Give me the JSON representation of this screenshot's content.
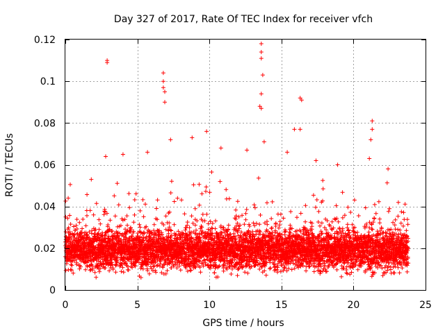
{
  "chart_data": {
    "type": "scatter",
    "title": "Day 327 of 2017, Rate Of TEC Index for receiver vfch",
    "xlabel": "GPS time / hours",
    "ylabel": "ROTI / TECUs",
    "xlim": [
      0,
      25
    ],
    "ylim": [
      0,
      0.12
    ],
    "x_ticks": [
      0,
      5,
      10,
      15,
      20,
      25
    ],
    "y_ticks": [
      0,
      0.02,
      0.04,
      0.06,
      0.08,
      0.1,
      0.12
    ],
    "x_tick_labels": [
      "0",
      "5",
      "10",
      "15",
      "20",
      "25"
    ],
    "y_tick_labels": [
      "0",
      "0.02",
      "0.04",
      "0.06",
      "0.08",
      "0.1",
      "0.12"
    ],
    "grid": true,
    "marker": "plus",
    "color": "#ff0000",
    "data_range_hours": [
      0,
      23.8
    ],
    "typical_band": [
      0.008,
      0.03
    ],
    "series": [
      {
        "name": "vfch ROTI",
        "notable_points": [
          {
            "x": 0.2,
            "y": 0.044
          },
          {
            "x": 1.8,
            "y": 0.053
          },
          {
            "x": 2.9,
            "y": 0.11
          },
          {
            "x": 2.9,
            "y": 0.109
          },
          {
            "x": 2.8,
            "y": 0.064
          },
          {
            "x": 4.0,
            "y": 0.065
          },
          {
            "x": 5.7,
            "y": 0.066
          },
          {
            "x": 6.8,
            "y": 0.104
          },
          {
            "x": 6.8,
            "y": 0.1
          },
          {
            "x": 6.8,
            "y": 0.097
          },
          {
            "x": 6.9,
            "y": 0.095
          },
          {
            "x": 6.9,
            "y": 0.09
          },
          {
            "x": 7.3,
            "y": 0.072
          },
          {
            "x": 8.8,
            "y": 0.073
          },
          {
            "x": 9.8,
            "y": 0.076
          },
          {
            "x": 10.8,
            "y": 0.068
          },
          {
            "x": 12.6,
            "y": 0.067
          },
          {
            "x": 13.6,
            "y": 0.118
          },
          {
            "x": 13.6,
            "y": 0.114
          },
          {
            "x": 13.6,
            "y": 0.111
          },
          {
            "x": 13.7,
            "y": 0.103
          },
          {
            "x": 13.6,
            "y": 0.094
          },
          {
            "x": 13.5,
            "y": 0.088
          },
          {
            "x": 13.6,
            "y": 0.087
          },
          {
            "x": 13.8,
            "y": 0.071
          },
          {
            "x": 15.4,
            "y": 0.066
          },
          {
            "x": 15.9,
            "y": 0.077
          },
          {
            "x": 16.3,
            "y": 0.077
          },
          {
            "x": 16.3,
            "y": 0.092
          },
          {
            "x": 16.4,
            "y": 0.091
          },
          {
            "x": 17.4,
            "y": 0.062
          },
          {
            "x": 18.9,
            "y": 0.06
          },
          {
            "x": 21.3,
            "y": 0.081
          },
          {
            "x": 21.3,
            "y": 0.077
          },
          {
            "x": 21.2,
            "y": 0.072
          },
          {
            "x": 21.1,
            "y": 0.063
          },
          {
            "x": 22.4,
            "y": 0.058
          },
          {
            "x": 23.3,
            "y": 0.032
          }
        ]
      }
    ]
  }
}
